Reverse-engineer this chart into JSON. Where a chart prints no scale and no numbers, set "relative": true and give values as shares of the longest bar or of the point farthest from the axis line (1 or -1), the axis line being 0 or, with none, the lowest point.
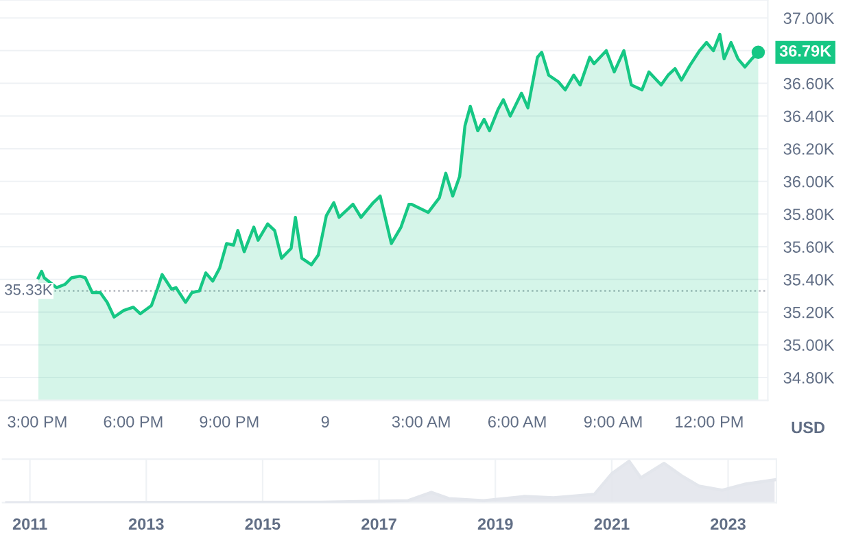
{
  "chart_data": [
    {
      "type": "area",
      "x": [
        "2023-11-08T15:02",
        "2023-11-08T15:08",
        "2023-11-08T15:13",
        "2023-11-08T15:36",
        "2023-11-08T15:52",
        "2023-11-08T16:04",
        "2023-11-08T16:20",
        "2023-11-08T16:30",
        "2023-11-08T16:43",
        "2023-11-08T16:58",
        "2023-11-08T17:11",
        "2023-11-08T17:24",
        "2023-11-08T17:42",
        "2023-11-08T18:00",
        "2023-11-08T18:13",
        "2023-11-08T18:34",
        "2023-11-08T18:46",
        "2023-11-08T18:54",
        "2023-11-08T19:12",
        "2023-11-08T19:20",
        "2023-11-08T19:38",
        "2023-11-08T19:50",
        "2023-11-08T20:04",
        "2023-11-08T20:16",
        "2023-11-08T20:29",
        "2023-11-08T20:42",
        "2023-11-08T20:55",
        "2023-11-08T21:08",
        "2023-11-08T21:16",
        "2023-11-08T21:28",
        "2023-11-08T21:46",
        "2023-11-08T21:54",
        "2023-11-08T22:12",
        "2023-11-08T22:25",
        "2023-11-08T22:38",
        "2023-11-08T22:56",
        "2023-11-08T23:04",
        "2023-11-08T23:16",
        "2023-11-08T23:34",
        "2023-11-08T23:47",
        "2023-11-09T00:02",
        "2023-11-09T00:16",
        "2023-11-09T00:26",
        "2023-11-09T00:52",
        "2023-11-09T01:07",
        "2023-11-09T01:30",
        "2023-11-09T01:43",
        "2023-11-09T02:04",
        "2023-11-09T02:22",
        "2023-11-09T02:37",
        "2023-11-09T02:42",
        "2023-11-09T03:13",
        "2023-11-09T03:34",
        "2023-11-09T03:46",
        "2023-11-09T03:59",
        "2023-11-09T04:12",
        "2023-11-09T04:22",
        "2023-11-09T04:32",
        "2023-11-09T04:46",
        "2023-11-09T04:58",
        "2023-11-09T05:08",
        "2023-11-09T05:24",
        "2023-11-09T05:34",
        "2023-11-09T05:47",
        "2023-11-09T06:08",
        "2023-11-09T06:20",
        "2023-11-09T06:38",
        "2023-11-09T06:46",
        "2023-11-09T06:59",
        "2023-11-09T07:17",
        "2023-11-09T07:30",
        "2023-11-09T07:46",
        "2023-11-09T07:58",
        "2023-11-09T08:16",
        "2023-11-09T08:24",
        "2023-11-09T08:47",
        "2023-11-09T09:02",
        "2023-11-09T09:20",
        "2023-11-09T09:34",
        "2023-11-09T09:54",
        "2023-11-09T10:07",
        "2023-11-09T10:30",
        "2023-11-09T10:43",
        "2023-11-09T10:56",
        "2023-11-09T11:08",
        "2023-11-09T11:24",
        "2023-11-09T11:42",
        "2023-11-09T11:55",
        "2023-11-09T12:08",
        "2023-11-09T12:20",
        "2023-11-09T12:28",
        "2023-11-09T12:41",
        "2023-11-09T12:54",
        "2023-11-09T13:07",
        "2023-11-09T13:20",
        "2023-11-09T13:32"
      ],
      "series": [
        {
          "color": "#16c784",
          "values": [
            35410,
            35450,
            35410,
            35350,
            35370,
            35410,
            35420,
            35410,
            35320,
            35320,
            35260,
            35170,
            35210,
            35230,
            35190,
            35240,
            35350,
            35430,
            35340,
            35350,
            35260,
            35320,
            35330,
            35440,
            35390,
            35470,
            35620,
            35610,
            35700,
            35570,
            35720,
            35640,
            35740,
            35700,
            35530,
            35590,
            35780,
            35530,
            35490,
            35550,
            35790,
            35870,
            35780,
            35860,
            35780,
            35870,
            35910,
            35620,
            35720,
            35860,
            35860,
            35810,
            35900,
            36050,
            35910,
            36030,
            36340,
            36460,
            36310,
            36380,
            36310,
            36440,
            36500,
            36400,
            36540,
            36450,
            36760,
            36790,
            36650,
            36610,
            36560,
            36650,
            36590,
            36760,
            36720,
            36800,
            36670,
            36800,
            36590,
            36560,
            36670,
            36590,
            36650,
            36690,
            36620,
            36710,
            36800,
            36850,
            36800,
            36900,
            36750,
            36850,
            36750,
            36700,
            36750,
            36790
          ]
        }
      ],
      "xlim": [
        "2023-11-08T13:50",
        "2023-11-09T13:50"
      ],
      "ylim": [
        34660,
        37110
      ],
      "xticks": [
        {
          "value": "2023-11-08T15:00",
          "label": "3:00 PM"
        },
        {
          "value": "2023-11-08T18:00",
          "label": "6:00 PM"
        },
        {
          "value": "2023-11-08T21:00",
          "label": "9:00 PM"
        },
        {
          "value": "2023-11-09T00:00",
          "label": "9"
        },
        {
          "value": "2023-11-09T03:00",
          "label": "3:00 AM"
        },
        {
          "value": "2023-11-09T06:00",
          "label": "6:00 AM"
        },
        {
          "value": "2023-11-09T09:00",
          "label": "9:00 AM"
        },
        {
          "value": "2023-11-09T12:00",
          "label": "12:00 PM"
        }
      ],
      "yticks": [
        {
          "value": 34800,
          "label": "34.80K"
        },
        {
          "value": 35000,
          "label": "35.00K"
        },
        {
          "value": 35200,
          "label": "35.20K"
        },
        {
          "value": 35400,
          "label": "35.40K"
        },
        {
          "value": 35600,
          "label": "35.60K"
        },
        {
          "value": 35800,
          "label": "35.80K"
        },
        {
          "value": 36000,
          "label": "36.00K"
        },
        {
          "value": 36200,
          "label": "36.20K"
        },
        {
          "value": 36400,
          "label": "36.40K"
        },
        {
          "value": 36600,
          "label": "36.60K"
        },
        {
          "value": 36800,
          "label": null
        },
        {
          "value": 37000,
          "label": "37.00K"
        }
      ],
      "ref_lines": [
        {
          "axis": "y",
          "value": 35330,
          "label": "35.33K",
          "color": "#b0b4bc",
          "line_style": "dotted"
        }
      ],
      "annotations": [
        {
          "text": "36.79K",
          "x": "2023-11-09T13:32",
          "y": 36790
        },
        "USD"
      ],
      "grid": "y"
    },
    {
      "type": "area",
      "relative": true,
      "x": [
        2010.6,
        2016.0,
        2017.5,
        2017.9,
        2018.2,
        2018.8,
        2019.5,
        2020.0,
        2020.7,
        2021.0,
        2021.3,
        2021.5,
        2021.9,
        2022.2,
        2022.5,
        2022.9,
        2023.3,
        2023.8
      ],
      "series": [
        {
          "color": "#e3e6ec",
          "values": [
            0.0,
            0.01,
            0.05,
            0.25,
            0.1,
            0.05,
            0.15,
            0.12,
            0.2,
            0.7,
            1.0,
            0.6,
            0.95,
            0.65,
            0.4,
            0.3,
            0.45,
            0.55
          ]
        }
      ],
      "xlim": [
        2010.53,
        2023.83
      ],
      "xticks": [
        2011,
        2013,
        2015,
        2017,
        2019,
        2021,
        2023
      ],
      "grid": "x"
    }
  ]
}
